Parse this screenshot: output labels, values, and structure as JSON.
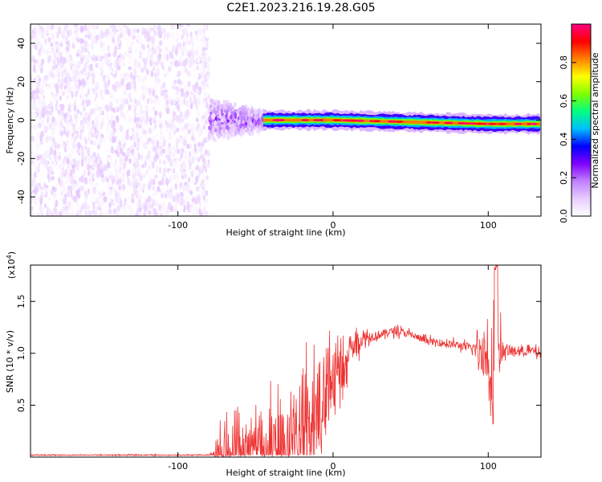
{
  "title": "C2E1.2023.216.19.28.G05",
  "chart_data": [
    {
      "type": "heatmap",
      "xlabel": "Height of straight line (km)",
      "ylabel": "Frequency (Hz)",
      "xlim": [
        -195,
        134
      ],
      "ylim": [
        -50,
        50
      ],
      "x_ticks": [
        -100,
        0,
        100
      ],
      "y_ticks": [
        -40,
        -20,
        0,
        20,
        40
      ],
      "colorbar": {
        "label": "Normalized spectral amplitude",
        "range": [
          0,
          1
        ],
        "ticks": [
          0.0,
          0.2,
          0.4,
          0.6,
          0.8
        ],
        "colormap": [
          "#ffffff",
          "#e8ccff",
          "#c080ff",
          "#8000ff",
          "#0000ff",
          "#00bfff",
          "#00ff80",
          "#80ff00",
          "#ffff00",
          "#ff8000",
          "#ff0000",
          "#ff0080"
        ]
      },
      "regions": [
        {
          "name": "noise",
          "x_range": [
            -195,
            -80
          ],
          "freq_range": [
            -50,
            50
          ],
          "amplitude": [
            0.0,
            0.1
          ]
        },
        {
          "name": "transition",
          "x_range": [
            -80,
            -45
          ],
          "freq_range": [
            -12,
            12
          ],
          "amplitude": [
            0.05,
            0.3
          ]
        },
        {
          "name": "signal",
          "x_range": [
            -45,
            134
          ],
          "center_freq": [
            [
              -45,
              0
            ],
            [
              0,
              0
            ],
            [
              50,
              -1
            ],
            [
              100,
              -2
            ],
            [
              134,
              -2
            ]
          ],
          "amplitude": [
            0.3,
            1.0
          ]
        }
      ],
      "grid": false
    },
    {
      "type": "line",
      "xlabel": "Height of straight line (km)",
      "ylabel": "SNR (10 * v/v)",
      "yscale_label": "(x10",
      "yscale_exp": "4",
      "yscale_close": ")",
      "xlim": [
        -195,
        134
      ],
      "ylim": [
        0,
        1.85
      ],
      "x_ticks": [
        -100,
        0,
        100
      ],
      "y_ticks": [
        0.5,
        1.0,
        1.5
      ],
      "y_tick_labels": [
        "0.5",
        "1.0",
        "1.5"
      ],
      "color": "#ee3333",
      "grid": false,
      "series_envelope": {
        "x": [
          -195,
          -80,
          -75,
          -70,
          -60,
          -50,
          -40,
          -30,
          -20,
          -10,
          0,
          10,
          20,
          30,
          40,
          50,
          60,
          70,
          80,
          90,
          95,
          100,
          103,
          105,
          107,
          110,
          120,
          130,
          134
        ],
        "y": [
          0.02,
          0.02,
          0.08,
          0.12,
          0.15,
          0.18,
          0.22,
          0.3,
          0.45,
          0.7,
          0.88,
          1.05,
          1.15,
          1.18,
          1.22,
          1.18,
          1.12,
          1.1,
          1.08,
          1.05,
          1.02,
          0.95,
          0.9,
          1.3,
          1.05,
          1.02,
          1.02,
          1.02,
          0.98
        ]
      },
      "noise_amplitude": {
        "x": [
          -195,
          -80,
          -75,
          -60,
          -45,
          -40,
          -20,
          -10,
          0,
          10,
          20,
          30,
          60,
          90,
          98,
          103,
          106,
          110,
          134
        ],
        "y": [
          0.005,
          0.005,
          0.15,
          0.25,
          0.2,
          0.35,
          0.45,
          0.4,
          0.3,
          0.2,
          0.08,
          0.05,
          0.04,
          0.05,
          0.3,
          0.5,
          0.4,
          0.06,
          0.05
        ]
      }
    }
  ]
}
